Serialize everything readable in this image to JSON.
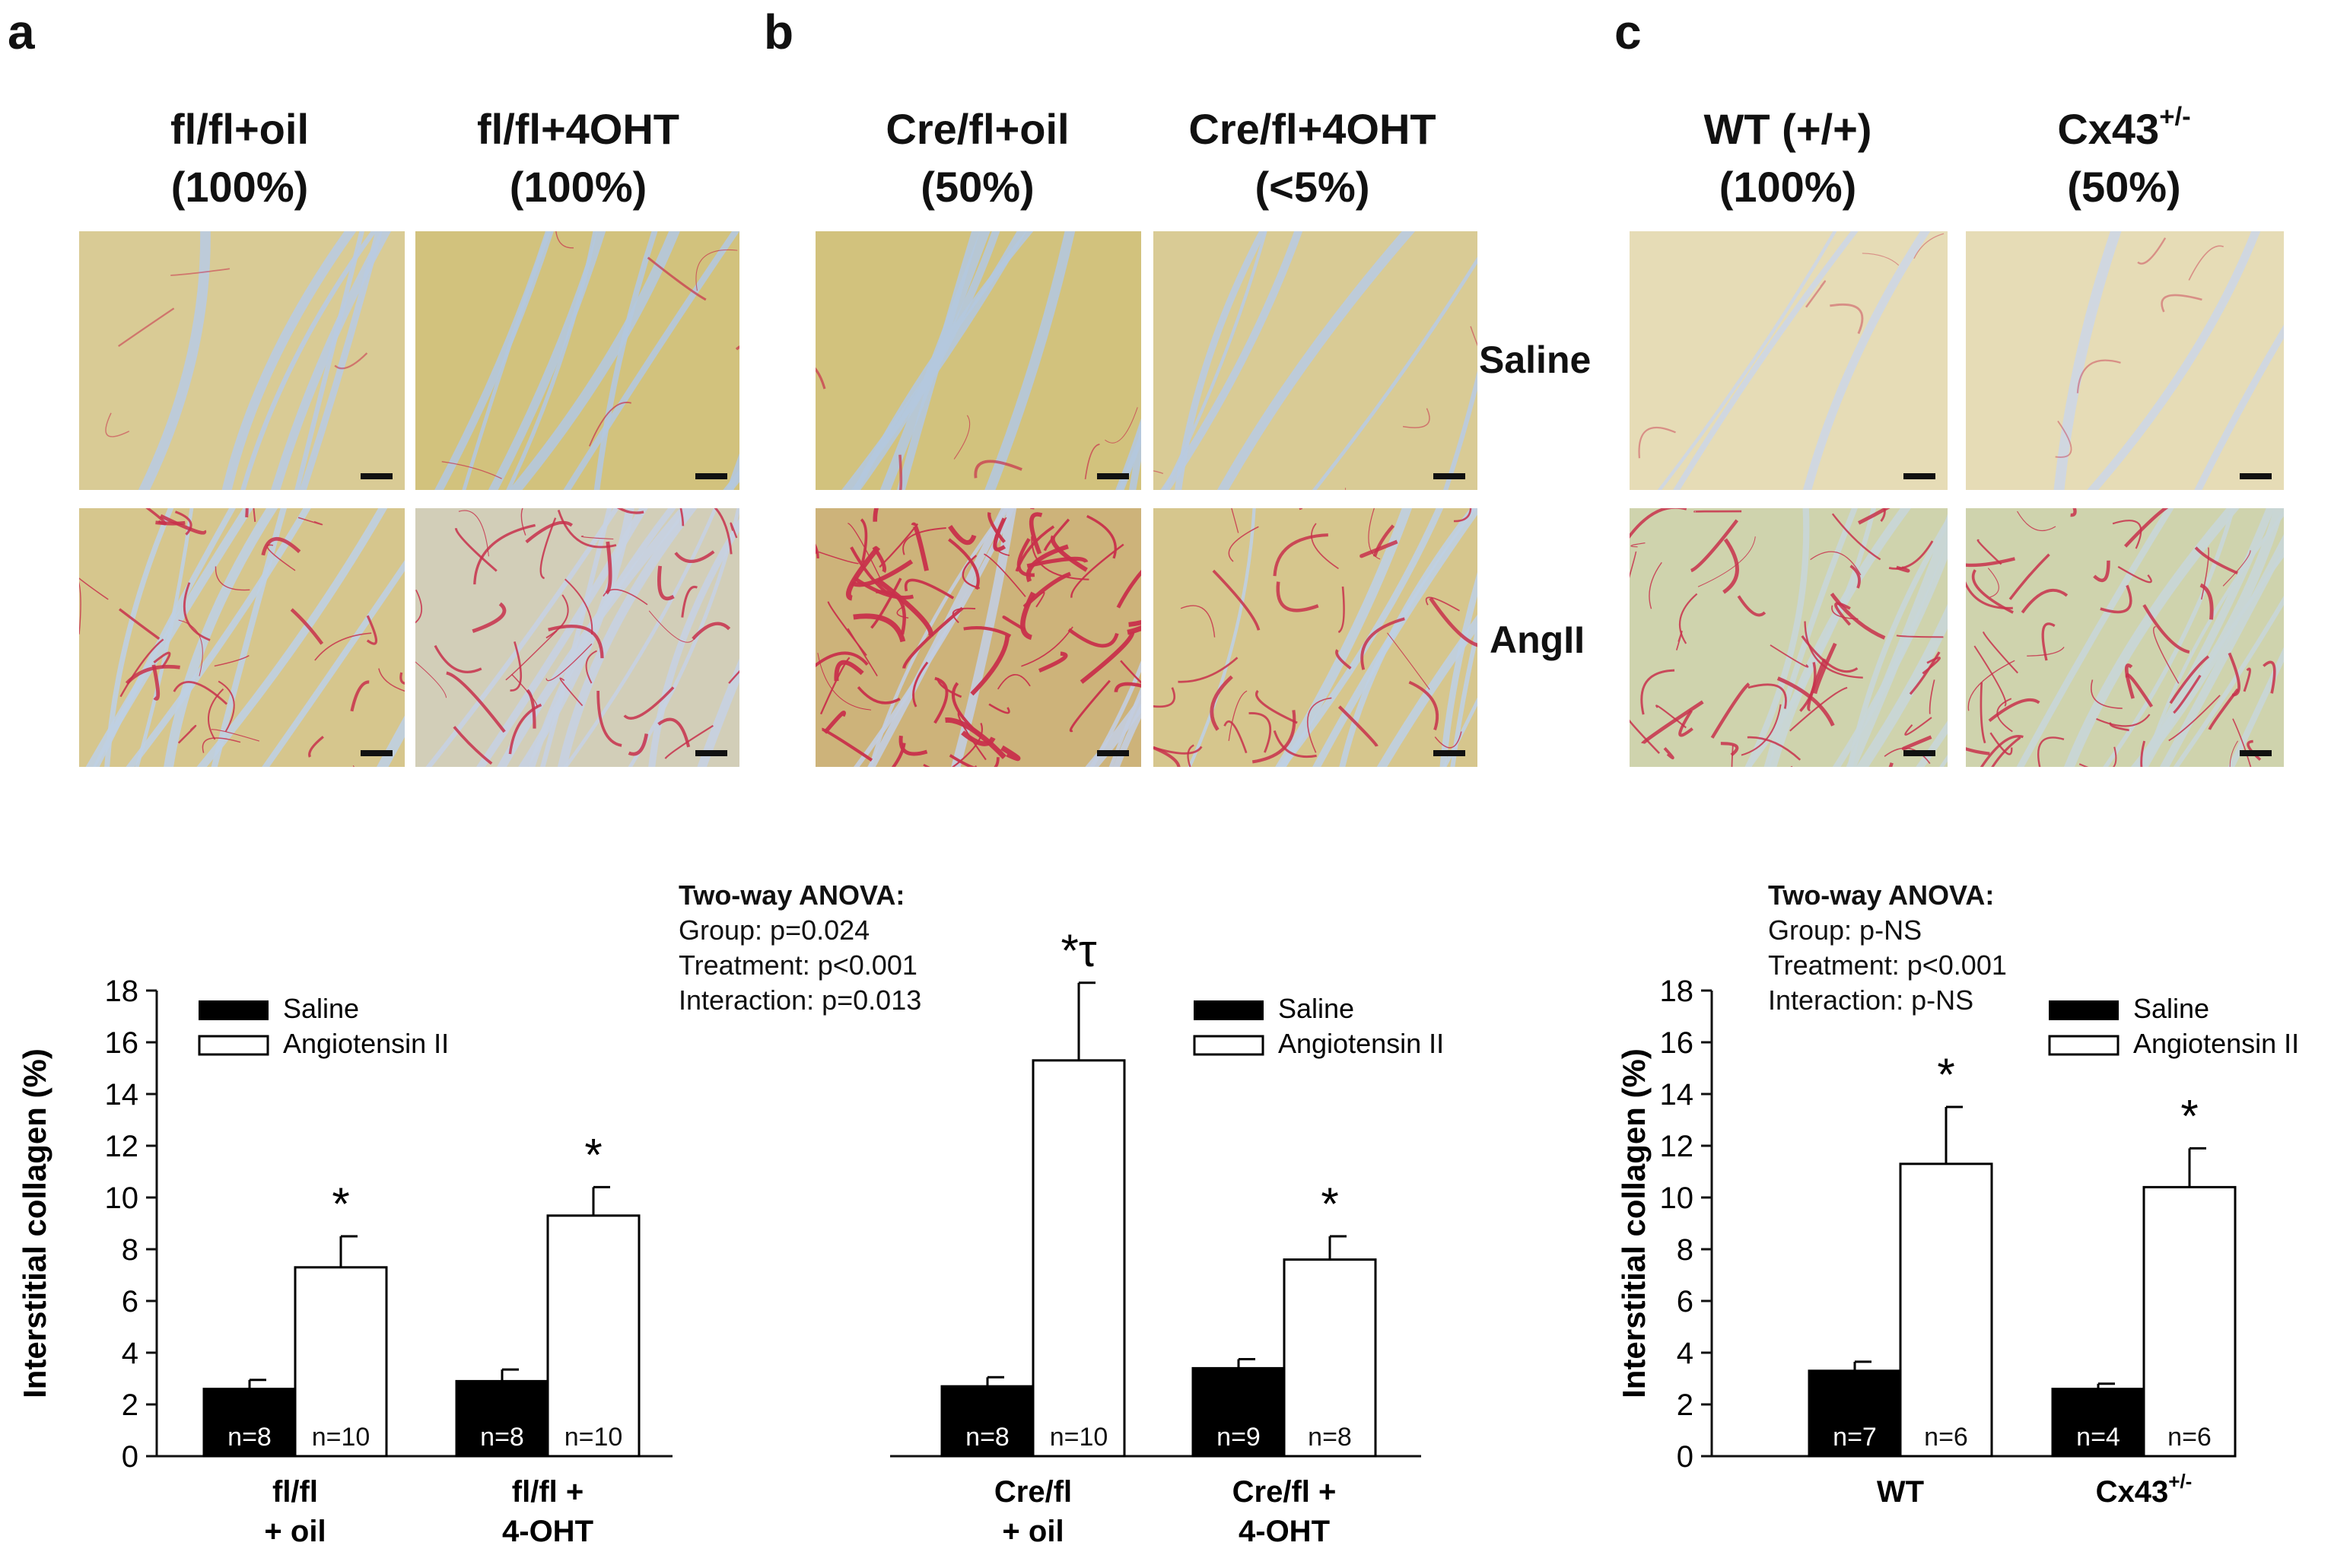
{
  "panels": [
    {
      "letter": "a",
      "col1": {
        "name": "fl/fl+oil",
        "pct": "(100%)"
      },
      "col2": {
        "name": "fl/fl+4OHT",
        "pct": "(100%)"
      }
    },
    {
      "letter": "b",
      "col1": {
        "name": "Cre/fl+oil",
        "pct": "(50%)"
      },
      "col2": {
        "name": "Cre/fl+4OHT",
        "pct": "(<5%)"
      }
    },
    {
      "letter": "c",
      "col1": {
        "name": "WT (+/+)",
        "pct": "(100%)"
      },
      "col2": {
        "name": "Cx43",
        "sup": "+/-",
        "pct": "(50%)"
      }
    }
  ],
  "rows": {
    "saline": "Saline",
    "angii": "AngII"
  },
  "colors": {
    "bar_saline": "#000000",
    "bar_angii": "#ffffff",
    "stain_bg": "#d8c98f",
    "stain_red": "#c9324a",
    "space": "#b7c9dc"
  },
  "anova_b": {
    "title": "Two-way ANOVA:",
    "lines": [
      "Group: p=0.024",
      "Treatment: p<0.001",
      "Interaction: p=0.013"
    ]
  },
  "anova_c": {
    "title": "Two-way ANOVA:",
    "lines": [
      "Group: p-NS",
      "Treatment: p<0.001",
      "Interaction: p-NS"
    ]
  },
  "chart_data": [
    {
      "type": "bar",
      "ylabel": "Interstitial collagen (%)",
      "ylim": [
        0,
        18
      ],
      "yticks": [
        0,
        2,
        4,
        6,
        8,
        10,
        12,
        14,
        16,
        18
      ],
      "legend": [
        "Saline",
        "Angiotensin II"
      ],
      "legend_position": "top-right",
      "groups": [
        {
          "label_lines": [
            "fl/fl",
            "+ oil"
          ],
          "saline": {
            "value": 2.6,
            "err": 0.35,
            "n": "n=8"
          },
          "angii": {
            "value": 7.3,
            "err": 1.2,
            "n": "n=10",
            "mark": "*"
          }
        },
        {
          "label_lines": [
            "fl/fl +",
            "4-OHT"
          ],
          "saline": {
            "value": 2.9,
            "err": 0.45,
            "n": "n=8"
          },
          "angii": {
            "value": 9.3,
            "err": 1.1,
            "n": "n=10",
            "mark": "*"
          }
        }
      ]
    },
    {
      "type": "bar",
      "ylabel": "",
      "ylim": [
        0,
        18
      ],
      "legend": [
        "Saline",
        "Angiotensin II"
      ],
      "legend_position": "top-right",
      "groups": [
        {
          "label_lines": [
            "Cre/fl",
            "+ oil"
          ],
          "saline": {
            "value": 2.7,
            "err": 0.35,
            "n": "n=8"
          },
          "angii": {
            "value": 15.3,
            "err": 3.0,
            "n": "n=10",
            "mark": "*τ"
          }
        },
        {
          "label_lines": [
            "Cre/fl +",
            "4-OHT"
          ],
          "saline": {
            "value": 3.4,
            "err": 0.35,
            "n": "n=9"
          },
          "angii": {
            "value": 7.6,
            "err": 0.9,
            "n": "n=8",
            "mark": "*"
          }
        }
      ]
    },
    {
      "type": "bar",
      "ylabel": "Interstitial collagen (%)",
      "ylim": [
        0,
        18
      ],
      "yticks": [
        0,
        2,
        4,
        6,
        8,
        10,
        12,
        14,
        16,
        18
      ],
      "legend": [
        "Saline",
        "Angiotensin II"
      ],
      "legend_position": "top-right",
      "groups": [
        {
          "label_lines": [
            "WT"
          ],
          "saline": {
            "value": 3.3,
            "err": 0.35,
            "n": "n=7"
          },
          "angii": {
            "value": 11.3,
            "err": 2.2,
            "n": "n=6",
            "mark": "*"
          }
        },
        {
          "label_lines": [
            "Cx43"
          ],
          "label_sup": "+/-",
          "saline": {
            "value": 2.6,
            "err": 0.2,
            "n": "n=4"
          },
          "angii": {
            "value": 10.4,
            "err": 1.5,
            "n": "n=6",
            "mark": "*"
          }
        }
      ]
    }
  ]
}
